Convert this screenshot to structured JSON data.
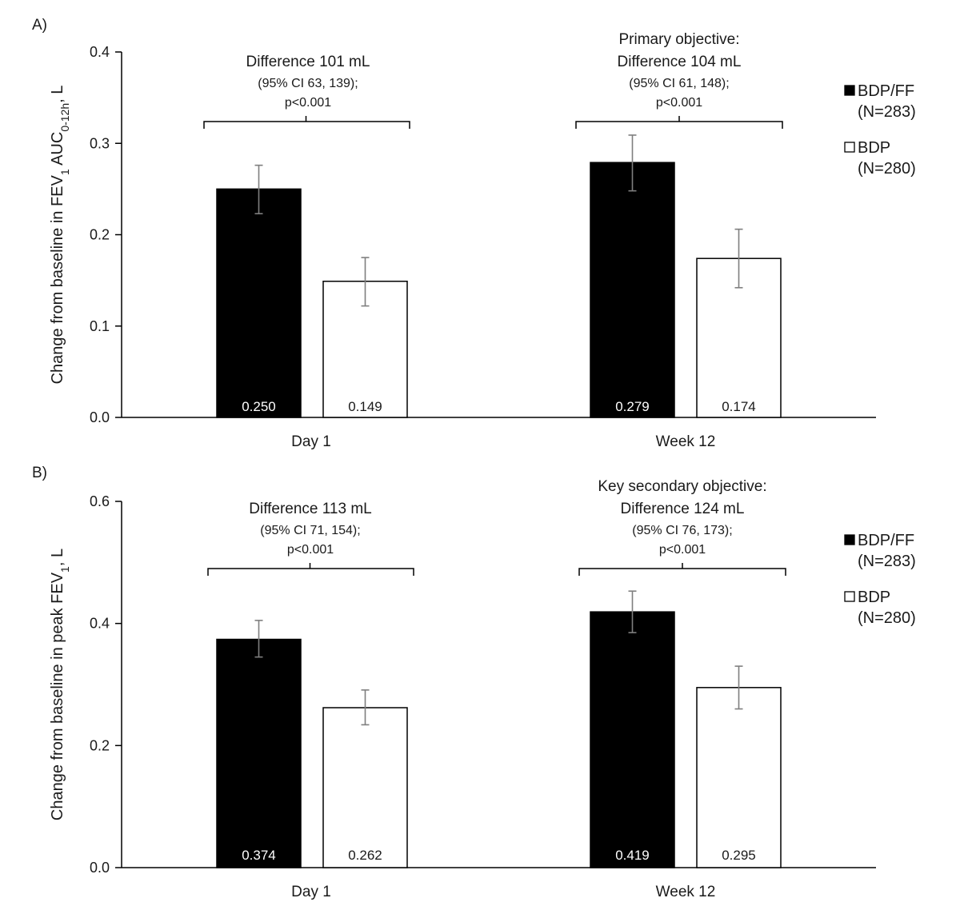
{
  "colors": {
    "bdp_ff": "#000000",
    "bdp": "#ffffff",
    "bar_stroke": "#000000",
    "error_bar": "#7f7f7f"
  },
  "chart_data": [
    {
      "type": "bar",
      "panel_label": "A)",
      "ylabel_parts": [
        "Change from baseline in FEV",
        "1",
        " AUC",
        "0-12h",
        ", L"
      ],
      "categories": [
        "Day 1",
        "Week 12"
      ],
      "ylim": [
        0,
        0.4
      ],
      "yticks": [
        "0.0",
        "0.1",
        "0.2",
        "0.3",
        "0.4"
      ],
      "grid": false,
      "legend_position": "right",
      "series": [
        {
          "name": "BDP/FF",
          "sub": "(N=283)",
          "values": [
            0.25,
            0.279
          ],
          "labels": [
            "0.250",
            "0.279"
          ],
          "ci_low": [
            0.223,
            0.248
          ],
          "ci_high": [
            0.276,
            0.309
          ]
        },
        {
          "name": "BDP",
          "sub": "(N=280)",
          "values": [
            0.149,
            0.174
          ],
          "labels": [
            "0.149",
            "0.174"
          ],
          "ci_low": [
            0.122,
            0.142
          ],
          "ci_high": [
            0.175,
            0.206
          ]
        }
      ],
      "annotations": [
        {
          "lines": [
            "Difference 101 mL",
            "(95% CI 63, 139);",
            "p<0.001"
          ]
        },
        {
          "lines": [
            "Primary objective:",
            "Difference 104 mL",
            "(95% CI 61, 148);",
            "p<0.001"
          ]
        }
      ]
    },
    {
      "type": "bar",
      "panel_label": "B)",
      "ylabel_parts": [
        "Change from baseline in peak FEV",
        "1",
        "",
        "",
        ", L"
      ],
      "categories": [
        "Day 1",
        "Week 12"
      ],
      "ylim": [
        0,
        0.6
      ],
      "yticks": [
        "0.0",
        "0.2",
        "0.4",
        "0.6"
      ],
      "grid": false,
      "legend_position": "right",
      "series": [
        {
          "name": "BDP/FF",
          "sub": "(N=283)",
          "values": [
            0.374,
            0.419
          ],
          "labels": [
            "0.374",
            "0.419"
          ],
          "ci_low": [
            0.345,
            0.385
          ],
          "ci_high": [
            0.405,
            0.453
          ]
        },
        {
          "name": "BDP",
          "sub": "(N=280)",
          "values": [
            0.262,
            0.295
          ],
          "labels": [
            "0.262",
            "0.295"
          ],
          "ci_low": [
            0.234,
            0.26
          ],
          "ci_high": [
            0.291,
            0.33
          ]
        }
      ],
      "annotations": [
        {
          "lines": [
            "Difference 113 mL",
            "(95% CI 71, 154);",
            "p<0.001"
          ]
        },
        {
          "lines": [
            "Key secondary objective:",
            "Difference 124 mL",
            "(95% CI 76, 173);",
            "p<0.001"
          ]
        }
      ]
    }
  ]
}
